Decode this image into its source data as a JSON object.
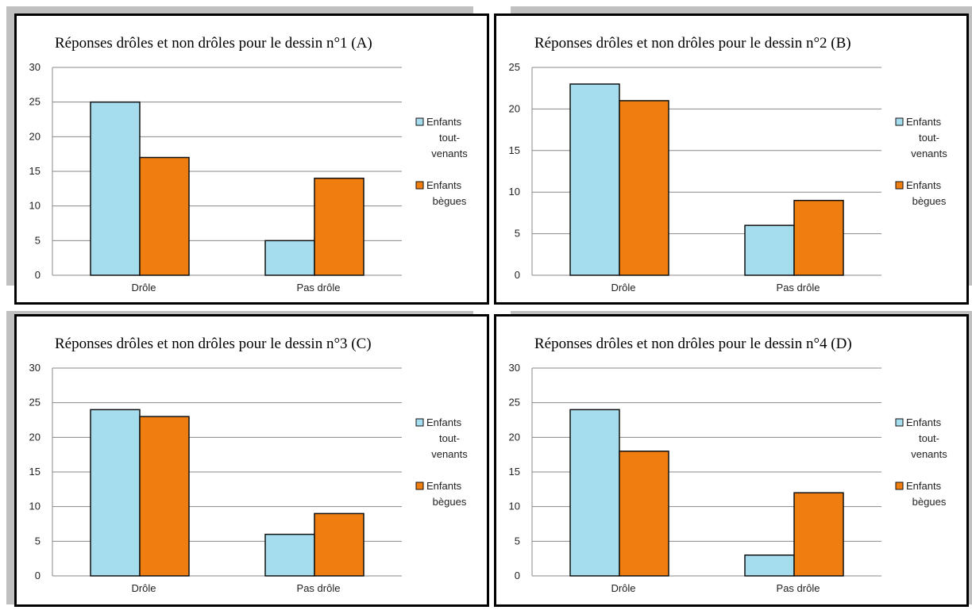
{
  "colors": {
    "series1": "#a5dcee",
    "series2": "#f07d10",
    "grid": "#888888"
  },
  "chart_data": [
    {
      "type": "bar",
      "title": "Réponses drôles et non drôles pour le dessin n°1 (A)",
      "categories": [
        "Drôle",
        "Pas drôle"
      ],
      "series": [
        {
          "name": "Enfants tout-venants",
          "values": [
            25,
            5
          ]
        },
        {
          "name": "Enfants bègues",
          "values": [
            17,
            14
          ]
        }
      ],
      "ylim": [
        0,
        30
      ],
      "yticks": [
        "0",
        "5",
        "10",
        "15",
        "20",
        "25",
        "30"
      ],
      "legend_lines": [
        [
          "Enfants",
          "tout-",
          "venants"
        ],
        [
          "Enfants",
          "bègues"
        ]
      ],
      "grid": true,
      "legend_position": "right"
    },
    {
      "type": "bar",
      "title": "Réponses drôles et non drôles pour le dessin n°2 (B)",
      "categories": [
        "Drôle",
        "Pas drôle"
      ],
      "series": [
        {
          "name": "Enfants tout-venants",
          "values": [
            23,
            6
          ]
        },
        {
          "name": "Enfants bègues",
          "values": [
            21,
            9
          ]
        }
      ],
      "ylim": [
        0,
        25
      ],
      "yticks": [
        "0",
        "5",
        "10",
        "15",
        "20",
        "25"
      ],
      "legend_lines": [
        [
          "Enfants",
          "tout-",
          "venants"
        ],
        [
          "Enfants",
          "bègues"
        ]
      ],
      "grid": true,
      "legend_position": "right"
    },
    {
      "type": "bar",
      "title": "Réponses drôles et non drôles pour le dessin n°3 (C)",
      "categories": [
        "Drôle",
        "Pas drôle"
      ],
      "series": [
        {
          "name": "Enfants tout-venants",
          "values": [
            24,
            6
          ]
        },
        {
          "name": "Enfants bègues",
          "values": [
            23,
            9
          ]
        }
      ],
      "ylim": [
        0,
        30
      ],
      "yticks": [
        "0",
        "5",
        "10",
        "15",
        "20",
        "25",
        "30"
      ],
      "legend_lines": [
        [
          "Enfants",
          "tout-",
          "venants"
        ],
        [
          "Enfants",
          "bègues"
        ]
      ],
      "grid": true,
      "legend_position": "right"
    },
    {
      "type": "bar",
      "title": "Réponses drôles et non drôles pour le dessin n°4 (D)",
      "categories": [
        "Drôle",
        "Pas drôle"
      ],
      "series": [
        {
          "name": "Enfants tout-venants",
          "values": [
            24,
            3
          ]
        },
        {
          "name": "Enfants bègues",
          "values": [
            18,
            12
          ]
        }
      ],
      "ylim": [
        0,
        30
      ],
      "yticks": [
        "0",
        "5",
        "10",
        "15",
        "20",
        "25",
        "30"
      ],
      "legend_lines": [
        [
          "Enfants",
          "tout-",
          "venants"
        ],
        [
          "Enfants",
          "bègues"
        ]
      ],
      "grid": true,
      "legend_position": "right"
    }
  ]
}
